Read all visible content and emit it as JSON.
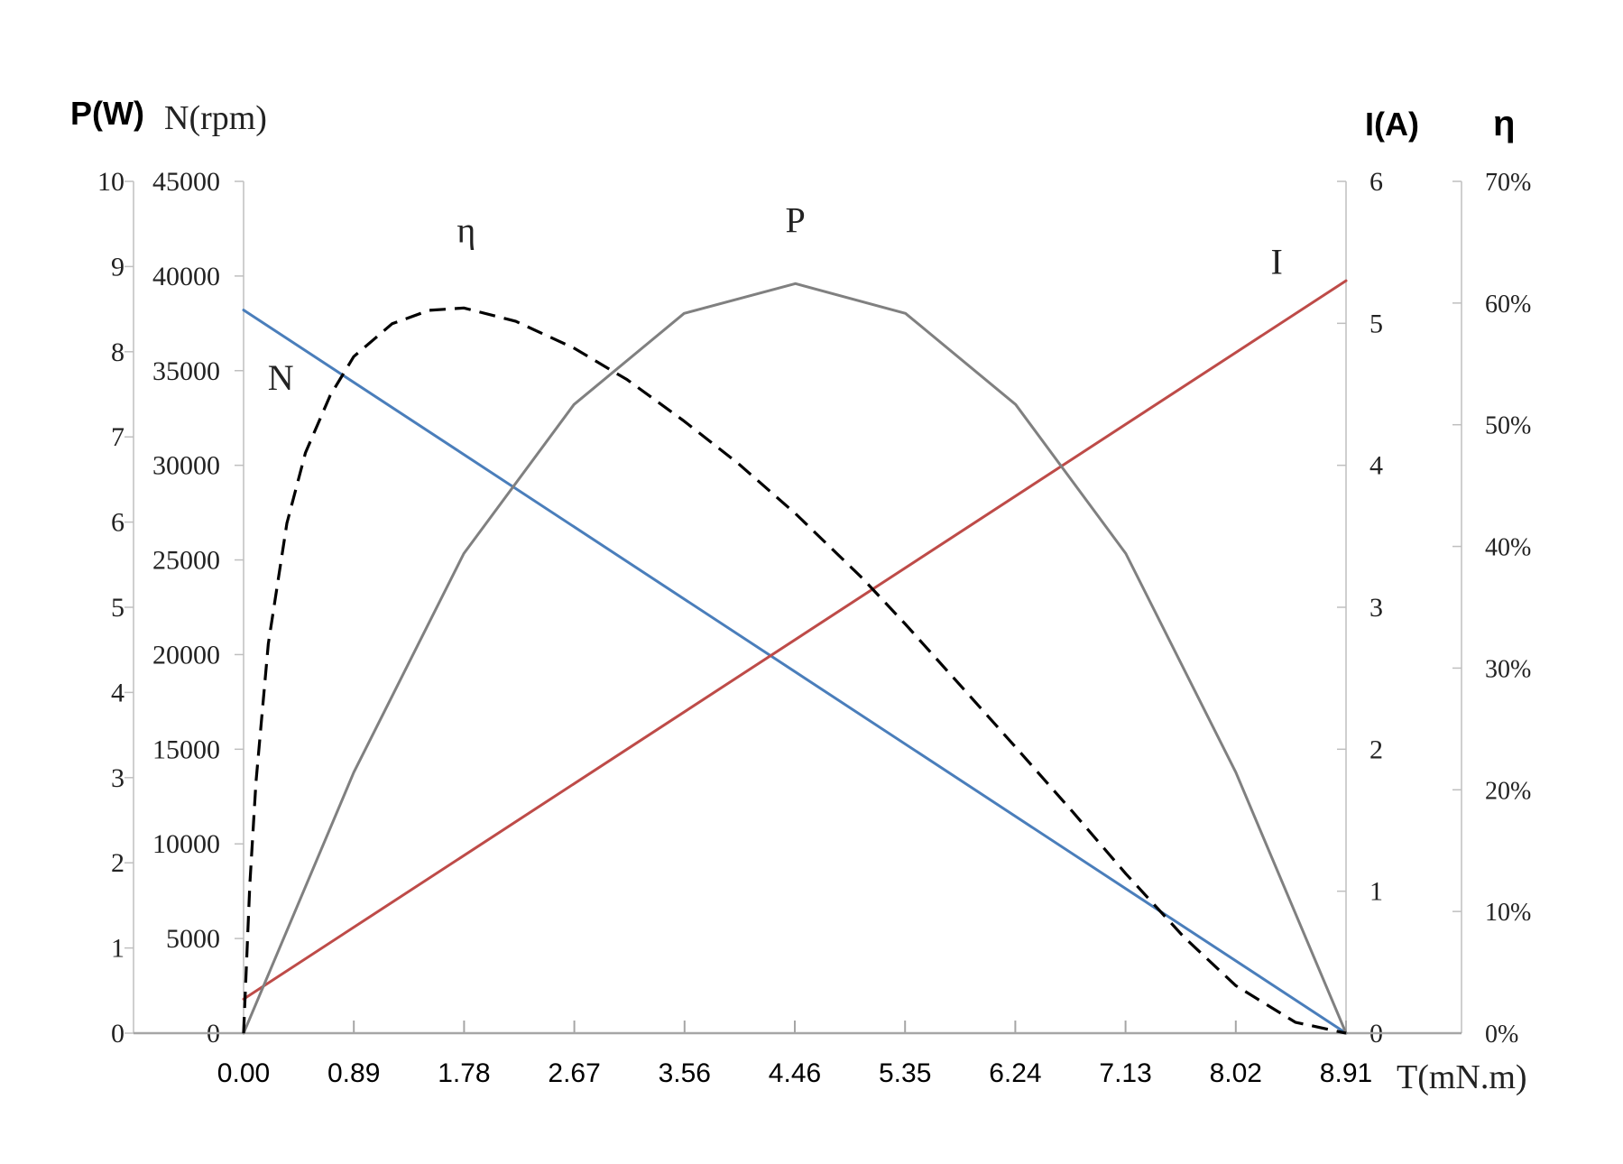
{
  "chart_data": {
    "type": "line",
    "axis_titles": {
      "power": "P(W)",
      "speed": "N(rpm)",
      "current": "I(A)",
      "efficiency": "η",
      "torque": "T(mN.m)"
    },
    "x": {
      "ticks": [
        "0.00",
        "0.89",
        "1.78",
        "2.67",
        "3.56",
        "4.46",
        "5.35",
        "6.24",
        "7.13",
        "8.02",
        "8.91"
      ],
      "range": [
        0,
        8.91
      ]
    },
    "axes": {
      "power": {
        "range": [
          0,
          10
        ],
        "ticks": [
          "0",
          "1",
          "2",
          "3",
          "4",
          "5",
          "6",
          "7",
          "8",
          "9",
          "10"
        ],
        "position": "left-outer"
      },
      "speed": {
        "range": [
          0,
          45000
        ],
        "ticks": [
          "0",
          "5000",
          "10000",
          "15000",
          "20000",
          "25000",
          "30000",
          "35000",
          "40000",
          "45000"
        ],
        "position": "left-inner"
      },
      "current": {
        "range": [
          0,
          6
        ],
        "ticks": [
          "0",
          "1",
          "2",
          "3",
          "4",
          "5",
          "6"
        ],
        "position": "right-inner"
      },
      "efficiency": {
        "range": [
          0,
          70
        ],
        "ticks": [
          "0%",
          "10%",
          "20%",
          "30%",
          "40%",
          "50%",
          "60%",
          "70%"
        ],
        "position": "right-outer"
      }
    },
    "series": [
      {
        "name": "N",
        "axis": "speed",
        "color": "#4a7ebb",
        "style": "solid",
        "x": [
          0,
          8.91
        ],
        "y": [
          38200,
          0
        ]
      },
      {
        "name": "I",
        "axis": "current",
        "color": "#be4b48",
        "style": "solid",
        "x": [
          0,
          8.91
        ],
        "y": [
          0.24,
          5.3
        ]
      },
      {
        "name": "P",
        "axis": "power",
        "color": "#808080",
        "style": "solid",
        "x": [
          0,
          0.89,
          1.78,
          2.67,
          3.56,
          4.46,
          5.35,
          6.24,
          7.13,
          8.02,
          8.91
        ],
        "y": [
          0,
          3.06,
          5.63,
          7.38,
          8.45,
          8.8,
          8.45,
          7.38,
          5.63,
          3.06,
          0
        ]
      },
      {
        "name": "η",
        "axis": "efficiency",
        "color": "#000000",
        "style": "dashed",
        "x": [
          0,
          0.05,
          0.1,
          0.2,
          0.35,
          0.5,
          0.7,
          0.89,
          1.2,
          1.5,
          1.78,
          2.2,
          2.67,
          3.1,
          3.56,
          4.0,
          4.46,
          5.0,
          5.35,
          5.8,
          6.24,
          6.7,
          7.13,
          7.6,
          8.02,
          8.5,
          8.91
        ],
        "y": [
          0,
          12.2,
          20.6,
          32.0,
          41.9,
          47.7,
          52.4,
          55.6,
          58.3,
          59.4,
          59.6,
          58.5,
          56.3,
          53.7,
          50.3,
          46.8,
          42.7,
          37.4,
          33.6,
          28.5,
          23.5,
          18.2,
          13.1,
          7.9,
          3.9,
          0.9,
          0
        ]
      }
    ],
    "labels": [
      {
        "text": "N",
        "series": "N",
        "x": 0.3,
        "y": 34000
      },
      {
        "text": "η",
        "series": "η",
        "x": 1.8,
        "y": 65
      },
      {
        "text": "P",
        "series": "P",
        "x": 4.46,
        "y": 9.4
      },
      {
        "text": "I",
        "series": "I",
        "x": 8.35,
        "y": 5.35
      }
    ],
    "grid": false
  }
}
